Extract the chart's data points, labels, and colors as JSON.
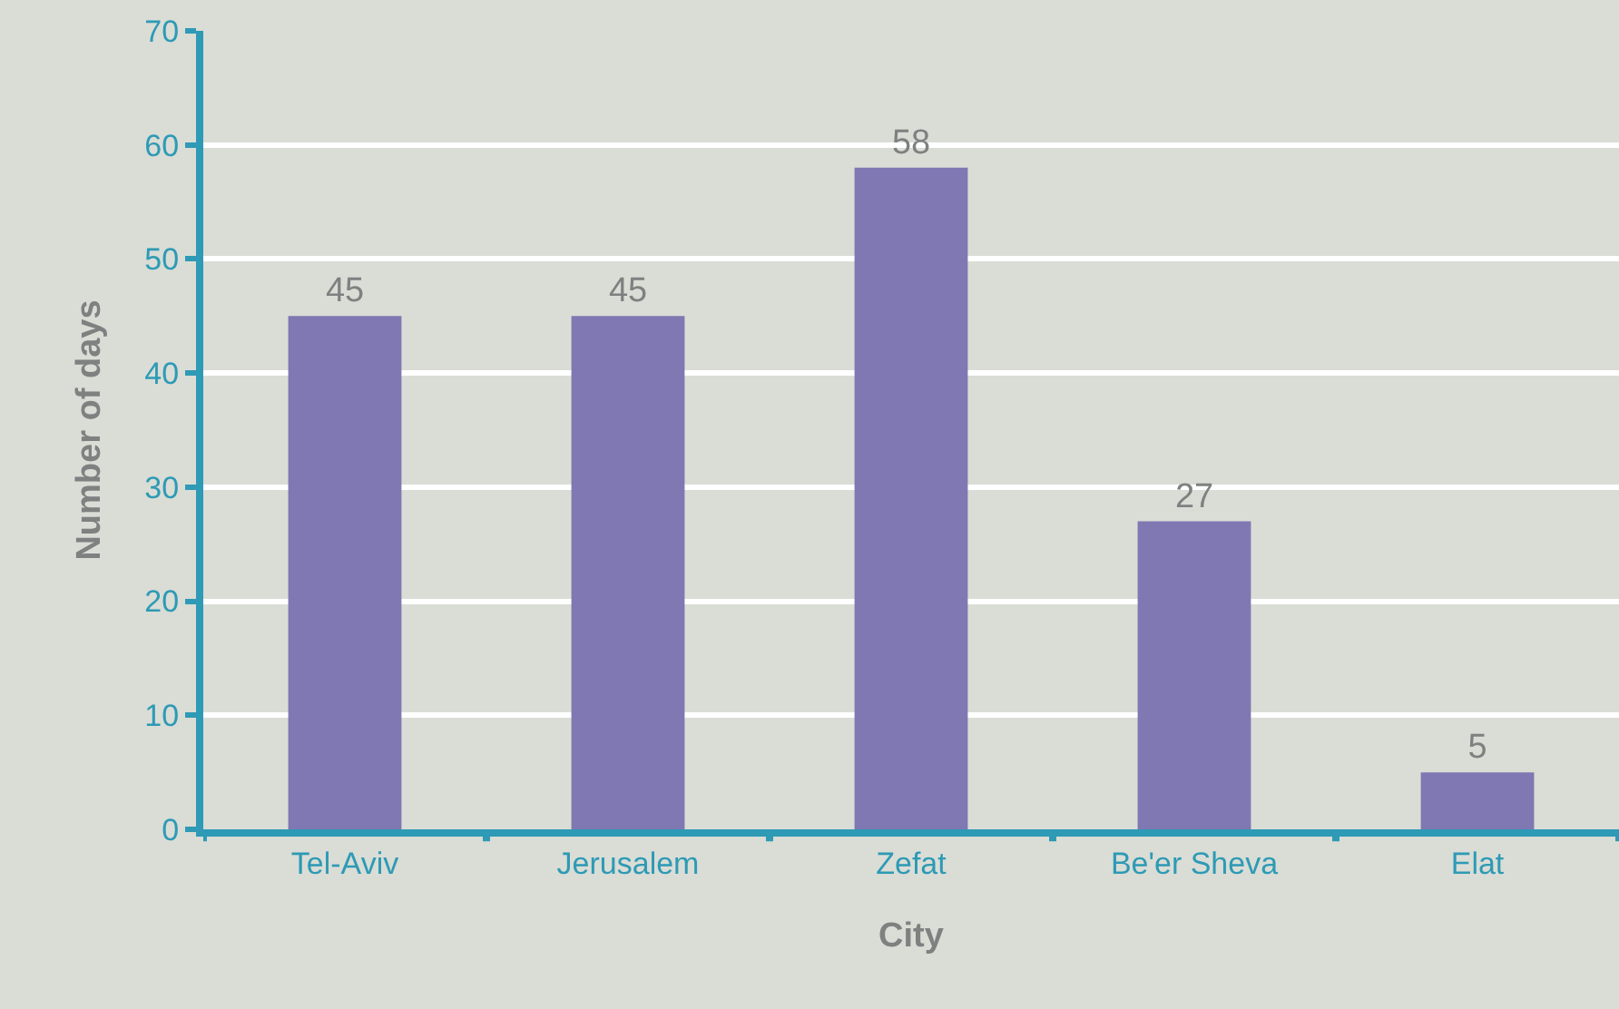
{
  "chart_data": {
    "type": "bar",
    "xlabel": "City",
    "ylabel": "Number of days",
    "categories": [
      "Tel-Aviv",
      "Jerusalem",
      "Zefat",
      "Be'er Sheva",
      "Elat"
    ],
    "values": [
      45,
      45,
      58,
      27,
      5
    ],
    "color": "#7f78b2",
    "ylim": [
      0,
      70
    ],
    "yticks": [
      0,
      10,
      20,
      30,
      40,
      50,
      60,
      70
    ],
    "grid": "y",
    "data_labels": true,
    "legend": false
  }
}
